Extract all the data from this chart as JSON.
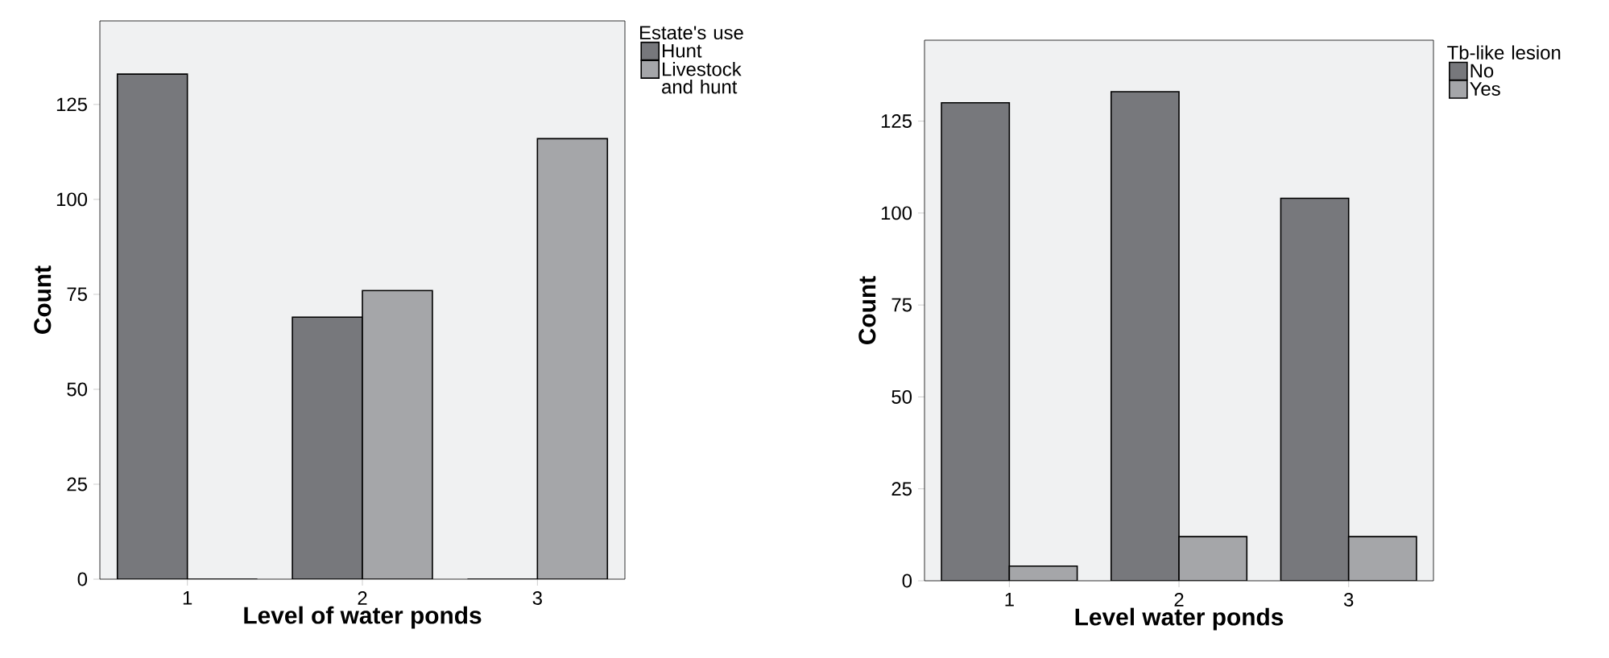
{
  "chart_data": [
    {
      "type": "bar",
      "xlabel": "Level of water ponds",
      "ylabel": "Count",
      "legend_title": "Estate's use",
      "categories": [
        "1",
        "2",
        "3"
      ],
      "series": [
        {
          "name": "Hunt",
          "color": "#77787c",
          "values": [
            133,
            69,
            0
          ]
        },
        {
          "name": "Livestock and hunt",
          "color": "#a5a6a9",
          "values": [
            0,
            76,
            116
          ]
        }
      ],
      "ylim": [
        0,
        147
      ],
      "yticks": [
        0,
        25,
        50,
        75,
        100,
        125
      ],
      "legend": "top right"
    },
    {
      "type": "bar",
      "xlabel": "Level water ponds",
      "ylabel": "Count",
      "legend_title": "Tb-like lesion",
      "categories": [
        "1",
        "2",
        "3"
      ],
      "series": [
        {
          "name": "No",
          "color": "#77787c",
          "values": [
            130,
            133,
            104
          ]
        },
        {
          "name": "Yes",
          "color": "#a5a6a9",
          "values": [
            4,
            12,
            12
          ]
        }
      ],
      "ylim": [
        0,
        147
      ],
      "yticks": [
        0,
        25,
        50,
        75,
        100,
        125
      ],
      "legend": "top right"
    }
  ]
}
